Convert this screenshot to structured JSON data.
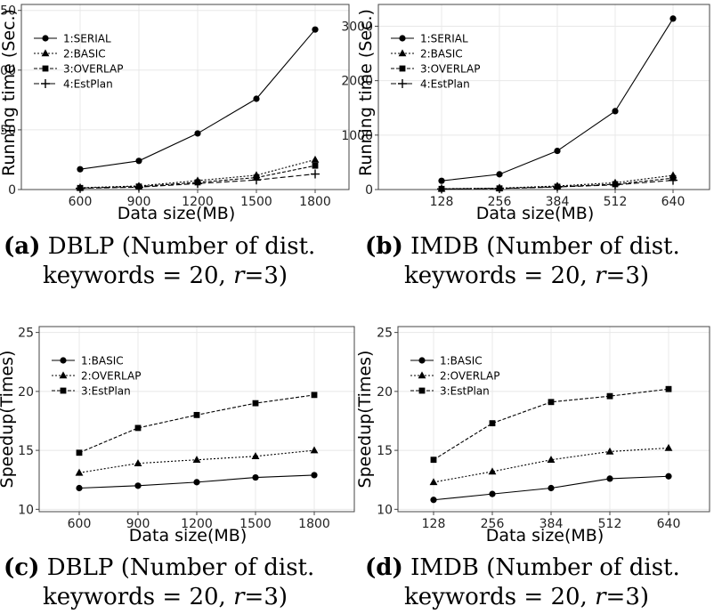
{
  "chart_data": [
    {
      "type": "line",
      "panel_label": "(a)",
      "caption_db": "DBLP",
      "caption_rest1": "(Number of dist.",
      "caption_line2_pre": "keywords = 20,",
      "caption_var": "r",
      "caption_line2_post": "=3)",
      "xlabel": "Data size(MB)",
      "ylabel": "Running time (Sec.)",
      "categories": [
        "600",
        "900",
        "1200",
        "1500",
        "1800"
      ],
      "ylim": [
        0,
        155
      ],
      "yticks": [
        0,
        50,
        100,
        150
      ],
      "legend_position": "top-left",
      "series": [
        {
          "name": "1:SERIAL",
          "marker": "circle",
          "dash": "",
          "values": [
            17,
            24,
            47,
            76,
            134
          ]
        },
        {
          "name": "2:BASIC",
          "marker": "triangle",
          "dash": "2,2",
          "values": [
            1.5,
            3,
            7.5,
            12,
            25
          ]
        },
        {
          "name": "3:OVERLAP",
          "marker": "square",
          "dash": "4,2",
          "values": [
            1.3,
            2.5,
            6,
            10,
            20
          ]
        },
        {
          "name": "4:EstPlan",
          "marker": "plus",
          "dash": "6,3",
          "values": [
            1.1,
            2,
            5,
            8,
            13
          ]
        }
      ]
    },
    {
      "type": "line",
      "panel_label": "(b)",
      "caption_db": "IMDB",
      "caption_rest1": "(Number of dist.",
      "caption_line2_pre": "keywords = 20,",
      "caption_var": "r",
      "caption_line2_post": "=3)",
      "xlabel": "Data size(MB)",
      "ylabel": "Running time (Sec.)",
      "categories": [
        "128",
        "256",
        "384",
        "512",
        "640"
      ],
      "ylim": [
        0,
        3400
      ],
      "yticks": [
        0,
        1000,
        2000,
        3000
      ],
      "legend_position": "top-left",
      "series": [
        {
          "name": "1:SERIAL",
          "marker": "circle",
          "dash": "",
          "values": [
            160,
            280,
            710,
            1440,
            3140
          ]
        },
        {
          "name": "2:BASIC",
          "marker": "triangle",
          "dash": "2,2",
          "values": [
            15,
            25,
            65,
            125,
            260
          ]
        },
        {
          "name": "3:OVERLAP",
          "marker": "square",
          "dash": "4,2",
          "values": [
            12,
            21,
            52,
            98,
            210
          ]
        },
        {
          "name": "4:EstPlan",
          "marker": "plus",
          "dash": "6,3",
          "values": [
            11,
            19,
            47,
            86,
            170
          ]
        }
      ]
    },
    {
      "type": "line",
      "panel_label": "(c)",
      "caption_db": "DBLP",
      "caption_rest1": "(Number of dist.",
      "caption_line2_pre": "keywords = 20,",
      "caption_var": "r",
      "caption_line2_post": "=3)",
      "xlabel": "Data size(MB)",
      "ylabel": "Speedup(Times)",
      "categories": [
        "600",
        "900",
        "1200",
        "1500",
        "1800"
      ],
      "ylim": [
        9.8,
        25.5
      ],
      "yticks": [
        10,
        15,
        20,
        25
      ],
      "legend_position": "top-left",
      "series": [
        {
          "name": "1:BASIC",
          "marker": "circle",
          "dash": "",
          "values": [
            11.8,
            12.0,
            12.3,
            12.7,
            12.9
          ]
        },
        {
          "name": "2:OVERLAP",
          "marker": "triangle",
          "dash": "2,2",
          "values": [
            13.1,
            13.9,
            14.2,
            14.5,
            15.0
          ]
        },
        {
          "name": "3:EstPlan",
          "marker": "square",
          "dash": "4,2",
          "values": [
            14.8,
            16.9,
            18.0,
            19.0,
            19.7
          ]
        }
      ]
    },
    {
      "type": "line",
      "panel_label": "(d)",
      "caption_db": "IMDB",
      "caption_rest1": "(Number of dist.",
      "caption_line2_pre": "keywords = 20,",
      "caption_var": "r",
      "caption_line2_post": "=3)",
      "xlabel": "Data size(MB)",
      "ylabel": "Speedup(Times)",
      "categories": [
        "128",
        "256",
        "384",
        "512",
        "640"
      ],
      "ylim": [
        9.8,
        25.5
      ],
      "yticks": [
        10,
        15,
        20,
        25
      ],
      "legend_position": "top-left",
      "series": [
        {
          "name": "1:BASIC",
          "marker": "circle",
          "dash": "",
          "values": [
            10.8,
            11.3,
            11.8,
            12.6,
            12.8
          ]
        },
        {
          "name": "2:OVERLAP",
          "marker": "triangle",
          "dash": "2,2",
          "values": [
            12.3,
            13.2,
            14.2,
            14.9,
            15.2
          ]
        },
        {
          "name": "3:EstPlan",
          "marker": "square",
          "dash": "4,2",
          "values": [
            14.2,
            17.3,
            19.1,
            19.6,
            20.2
          ]
        }
      ]
    }
  ]
}
